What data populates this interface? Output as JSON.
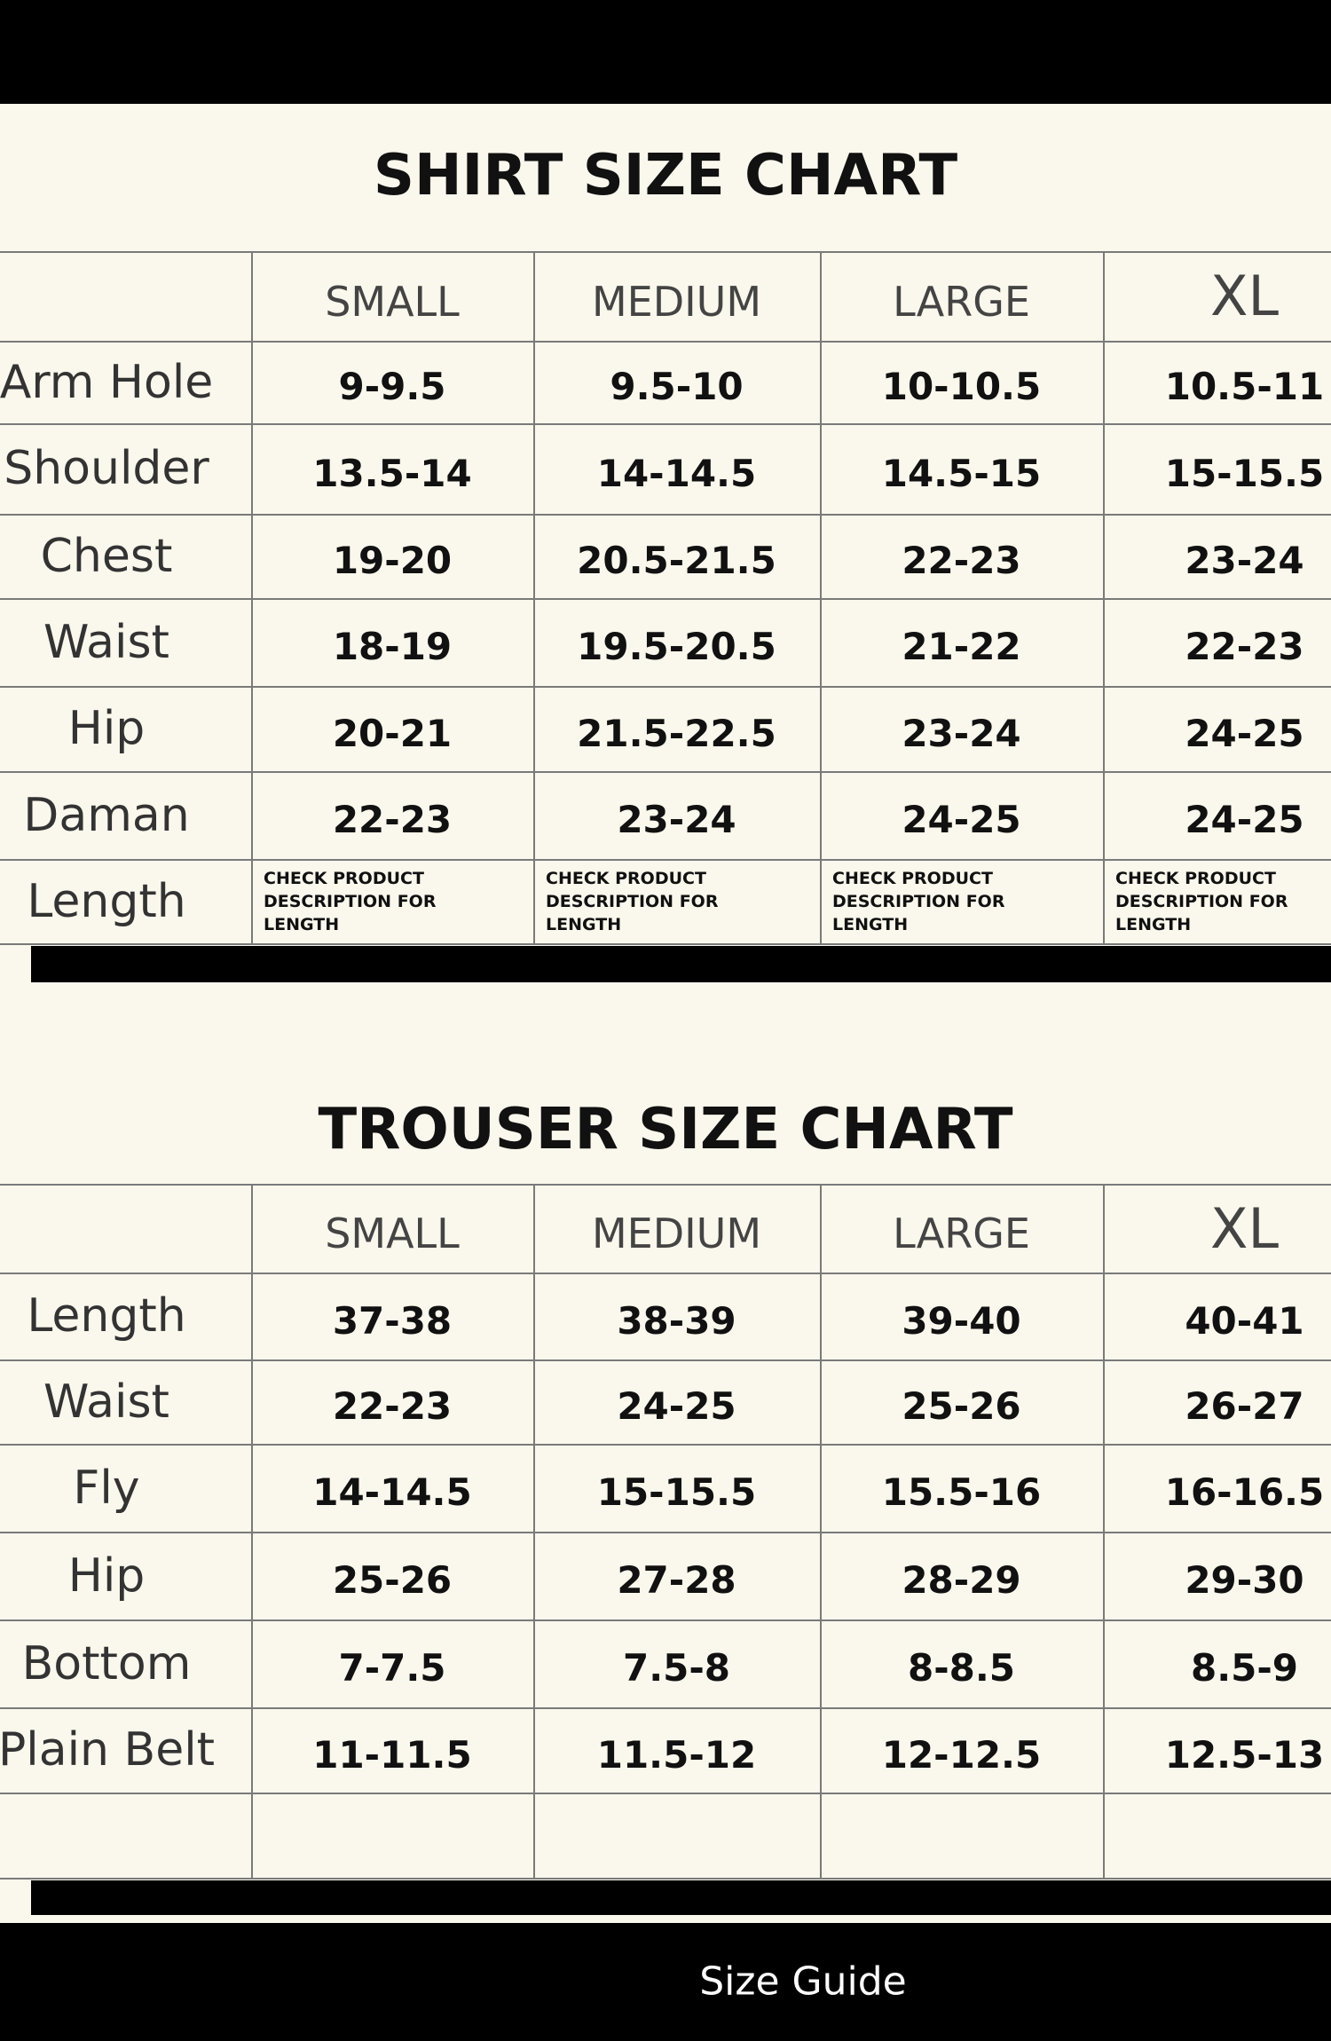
{
  "shirt_chart": {
    "title": "SHIRT SIZE CHART",
    "columns": [
      "SMALL",
      "MEDIUM",
      "LARGE",
      "XL"
    ],
    "rows": [
      {
        "label": "Arm Hole",
        "values": [
          "9-9.5",
          "9.5-10",
          "10-10.5",
          "10.5-11"
        ]
      },
      {
        "label": "Shoulder",
        "values": [
          "13.5-14",
          "14-14.5",
          "14.5-15",
          "15-15.5"
        ]
      },
      {
        "label": "Chest",
        "values": [
          "19-20",
          "20.5-21.5",
          "22-23",
          "23-24"
        ]
      },
      {
        "label": "Waist",
        "values": [
          "18-19",
          "19.5-20.5",
          "21-22",
          "22-23"
        ]
      },
      {
        "label": "Hip",
        "values": [
          "20-21",
          "21.5-22.5",
          "23-24",
          "24-25"
        ]
      },
      {
        "label": "Daman",
        "values": [
          "22-23",
          "23-24",
          "24-25",
          "24-25"
        ]
      },
      {
        "label": "Length",
        "notes": [
          "CHECK PRODUCT DESCRIPTION FOR LENGTH",
          "CHECK PRODUCT DESCRIPTION FOR LENGTH",
          "CHECK PRODUCT DESCRIPTION FOR LENGTH",
          "CHECK PRODUCT DESCRIPTION FOR LENGTH"
        ]
      }
    ]
  },
  "trouser_chart": {
    "title": "TROUSER SIZE CHART",
    "columns": [
      "SMALL",
      "MEDIUM",
      "LARGE",
      "XL"
    ],
    "rows": [
      {
        "label": "Length",
        "values": [
          "37-38",
          "38-39",
          "39-40",
          "40-41"
        ]
      },
      {
        "label": "Waist",
        "values": [
          "22-23",
          "24-25",
          "25-26",
          "26-27"
        ]
      },
      {
        "label": "Fly",
        "values": [
          "14-14.5",
          "15-15.5",
          "15.5-16",
          "16-16.5"
        ]
      },
      {
        "label": "Hip",
        "values": [
          "25-26",
          "27-28",
          "28-29",
          "29-30"
        ]
      },
      {
        "label": "Bottom",
        "values": [
          "7-7.5",
          "7.5-8",
          "8-8.5",
          "8.5-9"
        ]
      },
      {
        "label": "Plain Belt",
        "values": [
          "11-11.5",
          "11.5-12",
          "12-12.5",
          "12.5-13"
        ]
      }
    ]
  },
  "footer": {
    "title": "Size Guide"
  }
}
